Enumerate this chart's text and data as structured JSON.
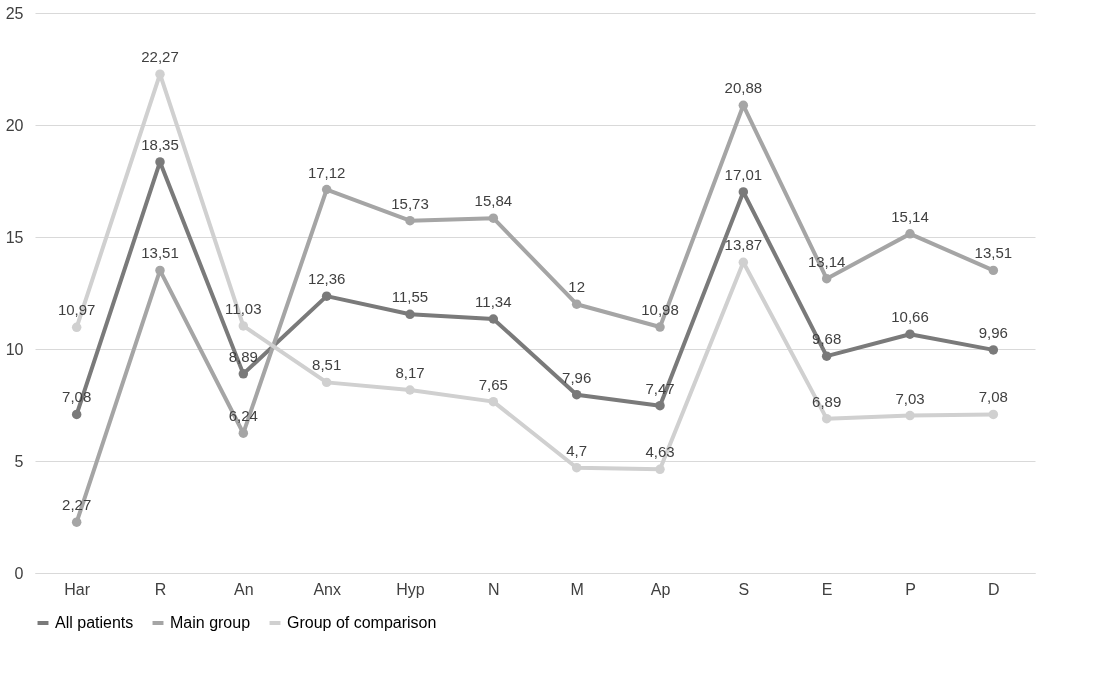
{
  "chart_data": {
    "type": "line",
    "categories": [
      "Har",
      "R",
      "An",
      "Anx",
      "Hyp",
      "N",
      "M",
      "Ap",
      "S",
      "E",
      "P",
      "D"
    ],
    "series": [
      {
        "name": "All patients",
        "color": "#7a7a7a",
        "values": [
          7.08,
          18.35,
          8.89,
          12.36,
          11.55,
          11.34,
          7.96,
          7.47,
          17.01,
          9.68,
          10.66,
          9.96
        ],
        "value_labels": [
          "7,08",
          "18,35",
          "8,89",
          "12,36",
          "11,55",
          "11,34",
          "7,96",
          "7,47",
          "17,01",
          "9,68",
          "10,66",
          "9,96"
        ]
      },
      {
        "name": "Main group",
        "color": "#a5a5a5",
        "values": [
          2.27,
          13.51,
          6.24,
          17.12,
          15.73,
          15.84,
          12,
          10.98,
          20.88,
          13.14,
          15.14,
          13.51
        ],
        "value_labels": [
          "2,27",
          "13,51",
          "6,24",
          "17,12",
          "15,73",
          "15,84",
          "12",
          "10,98",
          "20,88",
          "13,14",
          "15,14",
          "13,51"
        ]
      },
      {
        "name": "Group of comparison",
        "color": "#d0d0d0",
        "values": [
          10.97,
          22.27,
          11.03,
          8.51,
          8.17,
          7.65,
          4.7,
          4.63,
          13.87,
          6.89,
          7.03,
          7.08
        ],
        "value_labels": [
          "10,97",
          "22,27",
          "11,03",
          "8,51",
          "8,17",
          "7,65",
          "4,7",
          "4,63",
          "13,87",
          "6,89",
          "7,03",
          "7,08"
        ]
      }
    ],
    "ylim": [
      0,
      25
    ],
    "yticks": [
      0,
      5,
      10,
      15,
      20,
      25
    ],
    "grid": "y",
    "legend": "bottom",
    "marker": "circle",
    "line_style": "solid"
  }
}
